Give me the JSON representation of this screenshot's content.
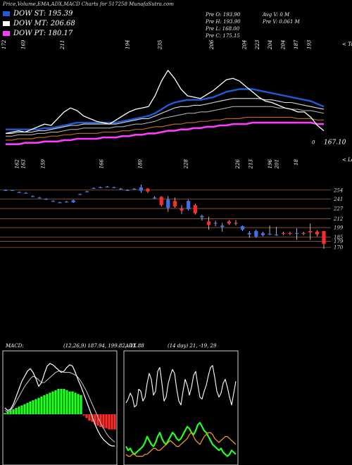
{
  "header": {
    "title": "Price,Volume,EMA,ADX,MACD Charts for 517258 MunafaSutra.com",
    "legend": [
      {
        "label": "DOW ST: 195.39",
        "color": "#1f5bd6"
      },
      {
        "label": "DOW MT: 206.68",
        "color": "#ffffff"
      },
      {
        "label": "DOW PT: 180.17",
        "color": "#ff3bff"
      }
    ],
    "info_col1": [
      "Pre O: 193.90",
      "Pre H: 193.90",
      "Pre L: 168.00",
      "Pre C: 175.15"
    ],
    "info_col2": [
      "Avg V: 0 M",
      "Pre V: 0.061 M"
    ]
  },
  "chart_data": [
    {
      "type": "line",
      "name": "price-ema",
      "tag_top": "< Tops",
      "tag_bottom": "< Lows",
      "last_price_label": "167.10",
      "last_price_marker": "0",
      "top_labels": [
        {
          "i": 0,
          "text": "172"
        },
        {
          "i": 3,
          "text": "169"
        },
        {
          "i": 9,
          "text": "211"
        },
        {
          "i": 19,
          "text": "194"
        },
        {
          "i": 24,
          "text": "235"
        },
        {
          "i": 32,
          "text": "206"
        },
        {
          "i": 37,
          "text": "204"
        },
        {
          "i": 39,
          "text": "223"
        },
        {
          "i": 41,
          "text": "204"
        },
        {
          "i": 43,
          "text": "204"
        },
        {
          "i": 45,
          "text": "187"
        },
        {
          "i": 47,
          "text": "193"
        }
      ],
      "bottom_labels": [
        {
          "i": 2,
          "text": "162"
        },
        {
          "i": 3,
          "text": "163"
        },
        {
          "i": 6,
          "text": "159"
        },
        {
          "i": 15,
          "text": "166"
        },
        {
          "i": 21,
          "text": "180"
        },
        {
          "i": 28,
          "text": "228"
        },
        {
          "i": 36,
          "text": "226"
        },
        {
          "i": 38,
          "text": "213"
        },
        {
          "i": 41,
          "text": "196"
        },
        {
          "i": 42,
          "text": "201"
        },
        {
          "i": 45,
          "text": "18"
        }
      ],
      "series": [
        {
          "role": "price",
          "color": "#ffffff",
          "values": [
            165,
            166,
            167,
            166,
            168,
            170,
            172,
            171,
            176,
            181,
            184,
            182,
            178,
            176,
            174,
            173,
            172,
            175,
            178,
            181,
            183,
            184,
            185,
            193,
            204,
            212,
            206,
            198,
            193,
            192,
            191,
            194,
            197,
            201,
            205,
            206,
            204,
            200,
            196,
            192,
            189,
            188,
            186,
            184,
            183,
            181,
            181,
            177,
            171,
            167
          ]
        },
        {
          "role": "ema-short",
          "color": "#1f5bd6",
          "values": [
            168,
            168,
            168,
            168,
            168,
            168,
            169,
            169,
            170,
            171,
            172,
            173,
            173,
            173,
            173,
            173,
            173,
            173,
            174,
            175,
            176,
            177,
            178,
            180,
            183,
            186,
            188,
            189,
            190,
            190,
            190,
            191,
            192,
            194,
            196,
            197,
            198,
            198,
            198,
            197,
            196,
            195,
            194,
            193,
            192,
            191,
            190,
            189,
            187,
            185
          ]
        },
        {
          "role": "ema-medium",
          "color": "#dddddd",
          "values": [
            165,
            165,
            166,
            166,
            166,
            167,
            167,
            168,
            169,
            170,
            171,
            171,
            172,
            172,
            172,
            172,
            172,
            172,
            173,
            174,
            175,
            176,
            176,
            178,
            180,
            182,
            184,
            185,
            185,
            186,
            186,
            187,
            188,
            189,
            190,
            191,
            191,
            191,
            191,
            191,
            190,
            190,
            189,
            188,
            188,
            187,
            186,
            185,
            184,
            183
          ]
        },
        {
          "role": "ema-long",
          "color": "#bbbbbb",
          "values": [
            163,
            163,
            164,
            164,
            164,
            165,
            165,
            166,
            166,
            167,
            168,
            168,
            169,
            169,
            169,
            169,
            169,
            170,
            170,
            171,
            172,
            172,
            173,
            174,
            176,
            177,
            178,
            179,
            180,
            180,
            181,
            181,
            182,
            183,
            184,
            185,
            185,
            185,
            185,
            185,
            185,
            185,
            184,
            184,
            183,
            183,
            182,
            182,
            181,
            180
          ]
        },
        {
          "role": "ema-trend",
          "color": "#b5651d",
          "values": [
            160,
            160,
            161,
            161,
            161,
            162,
            162,
            163,
            163,
            164,
            164,
            165,
            165,
            165,
            165,
            166,
            166,
            166,
            167,
            167,
            168,
            168,
            169,
            170,
            170,
            171,
            172,
            172,
            173,
            173,
            174,
            174,
            175,
            175,
            176,
            176,
            176,
            177,
            177,
            177,
            177,
            177,
            177,
            177,
            177,
            176,
            176,
            176,
            175,
            175
          ]
        },
        {
          "role": "dow-pt",
          "color": "#ff3bff",
          "values": [
            157,
            157,
            157,
            158,
            158,
            158,
            159,
            159,
            159,
            160,
            160,
            161,
            161,
            161,
            161,
            162,
            162,
            162,
            163,
            163,
            164,
            164,
            165,
            165,
            166,
            167,
            167,
            168,
            168,
            169,
            169,
            170,
            170,
            171,
            171,
            172,
            172,
            172,
            173,
            173,
            173,
            173,
            173,
            173,
            173,
            173,
            173,
            173,
            172,
            172
          ]
        }
      ]
    },
    {
      "type": "candlestick",
      "name": "price-candles",
      "ylim": [
        165,
        262
      ],
      "ticks": [
        "254",
        "241",
        "227",
        "212",
        "199",
        "185",
        "179",
        "170"
      ],
      "tick_values": [
        254,
        241,
        227,
        212,
        199,
        185,
        179,
        170
      ],
      "candles": [
        {
          "o": 254,
          "h": 255,
          "l": 253,
          "c": 254
        },
        {
          "o": 254,
          "h": 254,
          "l": 253,
          "c": 254
        },
        {
          "o": 251,
          "h": 252,
          "l": 250,
          "c": 251
        },
        {
          "o": 250,
          "h": 251,
          "l": 249,
          "c": 250
        },
        {
          "o": 245,
          "h": 246,
          "l": 244,
          "c": 245
        },
        {
          "o": 243,
          "h": 244,
          "l": 242,
          "c": 243
        },
        {
          "o": 241,
          "h": 242,
          "l": 240,
          "c": 241
        },
        {
          "o": 238,
          "h": 239,
          "l": 237,
          "c": 238
        },
        {
          "o": 236,
          "h": 237,
          "l": 235,
          "c": 236
        },
        {
          "o": 237,
          "h": 238,
          "l": 236,
          "c": 237
        },
        {
          "o": 236,
          "h": 240,
          "l": 235,
          "c": 239
        },
        {
          "o": 248,
          "h": 249,
          "l": 247,
          "c": 248
        },
        {
          "o": 252,
          "h": 253,
          "l": 251,
          "c": 252
        },
        {
          "o": 257,
          "h": 258,
          "l": 256,
          "c": 257
        },
        {
          "o": 258,
          "h": 259,
          "l": 257,
          "c": 258
        },
        {
          "o": 259,
          "h": 260,
          "l": 258,
          "c": 259
        },
        {
          "o": 258,
          "h": 259,
          "l": 257,
          "c": 258
        },
        {
          "o": 256,
          "h": 257,
          "l": 255,
          "c": 256
        },
        {
          "o": 254,
          "h": 255,
          "l": 253,
          "c": 254
        },
        {
          "o": 256,
          "h": 257,
          "l": 255,
          "c": 256
        },
        {
          "o": 253,
          "h": 262,
          "l": 250,
          "c": 258
        },
        {
          "o": 256,
          "h": 257,
          "l": 250,
          "c": 252
        },
        {
          "o": 243,
          "h": 245,
          "l": 241,
          "c": 243
        },
        {
          "o": 244,
          "h": 245,
          "l": 230,
          "c": 232
        },
        {
          "o": 228,
          "h": 245,
          "l": 222,
          "c": 240
        },
        {
          "o": 238,
          "h": 243,
          "l": 228,
          "c": 230
        },
        {
          "o": 227,
          "h": 232,
          "l": 219,
          "c": 224
        },
        {
          "o": 226,
          "h": 240,
          "l": 224,
          "c": 238
        },
        {
          "o": 232,
          "h": 234,
          "l": 218,
          "c": 220
        },
        {
          "o": 214,
          "h": 218,
          "l": 209,
          "c": 216
        },
        {
          "o": 208,
          "h": 215,
          "l": 196,
          "c": 203
        },
        {
          "o": 205,
          "h": 209,
          "l": 201,
          "c": 206
        },
        {
          "o": 200,
          "h": 206,
          "l": 193,
          "c": 202
        },
        {
          "o": 208,
          "h": 210,
          "l": 203,
          "c": 205
        },
        {
          "o": 206,
          "h": 210,
          "l": 202,
          "c": 205
        },
        {
          "o": 196,
          "h": 202,
          "l": 194,
          "c": 201
        },
        {
          "o": 189,
          "h": 194,
          "l": 184,
          "c": 191
        },
        {
          "o": 186,
          "h": 196,
          "l": 184,
          "c": 194
        },
        {
          "o": 188,
          "h": 193,
          "l": 186,
          "c": 191
        },
        {
          "o": 190,
          "h": 202,
          "l": 188,
          "c": 190
        },
        {
          "o": 189,
          "h": 200,
          "l": 187,
          "c": 189
        },
        {
          "o": 191,
          "h": 193,
          "l": 188,
          "c": 190
        },
        {
          "o": 191,
          "h": 193,
          "l": 188,
          "c": 190
        },
        {
          "o": 191,
          "h": 198,
          "l": 181,
          "c": 191
        },
        {
          "o": 191,
          "h": 193,
          "l": 188,
          "c": 190
        },
        {
          "o": 194,
          "h": 205,
          "l": 181,
          "c": 192
        },
        {
          "o": 193,
          "h": 195,
          "l": 186,
          "c": 189
        },
        {
          "o": 194,
          "h": 194,
          "l": 168,
          "c": 175
        }
      ]
    },
    {
      "type": "bar",
      "name": "macd",
      "label": "MACD",
      "params": "(12,26,9) 187.94, 199.82, -11.88",
      "values": [
        1,
        2,
        3,
        4,
        5,
        6,
        7,
        8,
        9,
        10,
        11,
        12,
        13,
        14,
        15,
        16,
        17,
        18,
        19,
        20,
        20,
        20,
        19,
        18,
        18,
        17,
        16,
        15,
        -1,
        -3,
        -5,
        -6,
        -8,
        -9,
        -10,
        -11,
        -11,
        -12,
        -12,
        -12
      ],
      "macd_line": [
        5,
        3,
        4,
        8,
        14,
        20,
        26,
        30,
        34,
        36,
        33,
        28,
        22,
        25,
        32,
        38,
        40,
        39,
        37,
        35,
        33,
        34,
        37,
        39,
        38,
        33,
        27,
        22,
        16,
        10,
        4,
        -2,
        -8,
        -13,
        -17,
        -20,
        -22,
        -24,
        -25,
        -25
      ],
      "signal_line": [
        3,
        2,
        3,
        6,
        10,
        14,
        18,
        22,
        25,
        28,
        30,
        29,
        27,
        25,
        25,
        27,
        29,
        31,
        33,
        34,
        34,
        33,
        33,
        33,
        32,
        31,
        29,
        26,
        22,
        18,
        13,
        8,
        3,
        -2,
        -7,
        -11,
        -15,
        -18,
        -20,
        -22
      ],
      "ylim": [
        -40,
        50
      ]
    },
    {
      "type": "line",
      "name": "adx",
      "label": "ADX",
      "params": "(14 day) 21, -19, 29",
      "ylim": [
        0,
        55
      ],
      "series": [
        {
          "role": "adx",
          "color": "#ffffff",
          "values": [
            30,
            32,
            35,
            33,
            28,
            29,
            37,
            36,
            31,
            33,
            40,
            45,
            42,
            34,
            36,
            46,
            48,
            40,
            31,
            33,
            40,
            44,
            47,
            45,
            37,
            31,
            29,
            36,
            42,
            39,
            34,
            38,
            44,
            46,
            39,
            33,
            32,
            36,
            39,
            44,
            48,
            49,
            43,
            36,
            33,
            35,
            40,
            42,
            38,
            33,
            29,
            35,
            41
          ]
        },
        {
          "role": "plus-di",
          "color": "#22ff22",
          "values": [
            8,
            6,
            7,
            5,
            4,
            5,
            6,
            7,
            8,
            10,
            13,
            11,
            9,
            8,
            10,
            13,
            15,
            12,
            10,
            9,
            11,
            13,
            15,
            14,
            12,
            11,
            12,
            14,
            16,
            18,
            17,
            15,
            14,
            16,
            19,
            20,
            18,
            16,
            15,
            13,
            11,
            9,
            8,
            7,
            6,
            7,
            5,
            4,
            3,
            4,
            6,
            5,
            4
          ]
        },
        {
          "role": "minus-di",
          "color": "#ff9d1d",
          "values": [
            4,
            3,
            3,
            4,
            4,
            3,
            3,
            3,
            3,
            4,
            4,
            5,
            6,
            7,
            7,
            6,
            6,
            7,
            8,
            9,
            10,
            11,
            10,
            9,
            8,
            8,
            9,
            10,
            11,
            12,
            14,
            15,
            13,
            11,
            10,
            9,
            11,
            13,
            14,
            15,
            15,
            14,
            12,
            11,
            10,
            11,
            12,
            13,
            13,
            12,
            11,
            10,
            9
          ]
        }
      ]
    }
  ]
}
